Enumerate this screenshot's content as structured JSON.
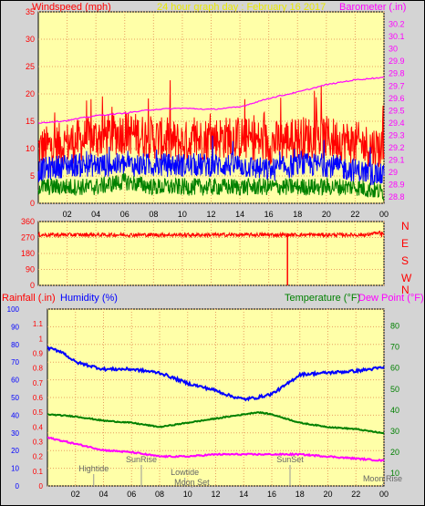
{
  "header": {
    "windspeed_label": "Windspeed (mph)",
    "title": "24 hour graph day : February 16 2017",
    "barometer_label": "Barometer (.in)"
  },
  "bottom_header": {
    "rainfall_label": "Rainfall (.in)",
    "humidity_label": "Humidity (%)",
    "temperature_label": "Temperature (°F)",
    "dewpoint_label": "Dew Point (°F)"
  },
  "colors": {
    "background": "#ffffa8",
    "grid": "#e8a060",
    "gust": "#ff0000",
    "average_wind": "#0000ff",
    "lull": "#008000",
    "barometer": "#ff00ff",
    "direction": "#ff0000",
    "humidity": "#0000ff",
    "temperature": "#008000",
    "dewpoint": "#ff00ff",
    "compass_text": "#ff0000"
  },
  "chart_data": [
    {
      "type": "line",
      "name": "wind-barometer",
      "x_ticks": [
        "02",
        "04",
        "06",
        "08",
        "10",
        "12",
        "14",
        "16",
        "18",
        "20",
        "22",
        "00"
      ],
      "wind_ylim": [
        0,
        35
      ],
      "wind_ticks": [
        "0",
        "5",
        "10",
        "15",
        "20",
        "25",
        "30",
        "35"
      ],
      "baro_ylim": [
        28.75,
        30.3
      ],
      "baro_ticks": [
        "28.8",
        "28.9",
        "29",
        "29.1",
        "29.2",
        "29.3",
        "29.4",
        "29.5",
        "29.6",
        "29.7",
        "29.8",
        "29.9",
        "30",
        "30.1",
        "30.2"
      ],
      "wind_gust_mean": [
        10,
        11,
        12,
        13,
        12,
        11,
        12,
        12,
        11,
        12,
        12,
        11,
        10
      ],
      "wind_avg_mean": [
        6,
        7,
        7,
        7,
        7,
        7,
        7,
        7,
        6,
        7,
        7,
        6,
        5
      ],
      "wind_lull_mean": [
        3,
        3,
        3,
        4,
        3,
        3,
        3,
        3,
        3,
        3,
        3,
        3,
        2
      ],
      "barometer": {
        "x": [
          0,
          2,
          4,
          6,
          8,
          10,
          12,
          14,
          16,
          18,
          20,
          22,
          24
        ],
        "y": [
          29.4,
          29.42,
          29.46,
          29.48,
          29.51,
          29.52,
          29.51,
          29.53,
          29.6,
          29.65,
          29.71,
          29.75,
          29.77
        ]
      }
    },
    {
      "type": "line",
      "name": "wind-direction",
      "x_ticks": [
        "02",
        "04",
        "06",
        "08",
        "10",
        "12",
        "14",
        "16",
        "18",
        "20",
        "22",
        "00"
      ],
      "ylim": [
        0,
        360
      ],
      "ticks": [
        "0",
        "90",
        "180",
        "270",
        "360"
      ],
      "compass": [
        "N",
        "W",
        "S",
        "E",
        "N"
      ],
      "direction_mean": 285,
      "spike_time": 17.3
    },
    {
      "type": "line",
      "name": "rain-humidity-temp",
      "x_ticks": [
        "02",
        "04",
        "06",
        "08",
        "10",
        "12",
        "14",
        "16",
        "18",
        "20",
        "22",
        "00"
      ],
      "humidity_ticks": [
        "0",
        "10",
        "20",
        "30",
        "40",
        "50",
        "60",
        "70",
        "80",
        "90",
        "100"
      ],
      "rain_ticks": [
        "0",
        "0.1",
        "0.2",
        "0.3",
        "0.4",
        "0.5",
        "0.6",
        "0.7",
        "0.8",
        "0.9",
        "1",
        "1.1"
      ],
      "temp_ticks": [
        "10",
        "20",
        "30",
        "40",
        "50",
        "60",
        "70",
        "80"
      ],
      "humidity": {
        "x": [
          0,
          1,
          2,
          3,
          4,
          6,
          8,
          10,
          12,
          13,
          14,
          15,
          16,
          17,
          18,
          20,
          22,
          24
        ],
        "y": [
          78,
          76,
          70,
          68,
          66,
          66,
          64,
          58,
          54,
          51,
          49,
          50,
          52,
          57,
          63,
          64,
          65,
          67
        ]
      },
      "temperature": {
        "x": [
          0,
          2,
          4,
          6,
          8,
          10,
          12,
          14,
          15,
          16,
          18,
          20,
          22,
          24
        ],
        "y": [
          38,
          37,
          35,
          34,
          32,
          34,
          36,
          38,
          39,
          38,
          34,
          32,
          31,
          29
        ]
      },
      "dewpoint": {
        "x": [
          0,
          2,
          4,
          6,
          8,
          10,
          12,
          14,
          16,
          18,
          20,
          22,
          24
        ],
        "y": [
          27,
          24,
          21,
          20,
          18,
          18,
          19,
          19,
          19,
          19,
          18,
          17,
          16
        ]
      },
      "annotations": [
        {
          "label": "Hightide",
          "time": 3.3
        },
        {
          "label": "SunRise",
          "time": 6.7
        },
        {
          "label": "Lowtide",
          "time": 9.8
        },
        {
          "label": "Moon Set",
          "time": 10.3
        },
        {
          "label": "SunSet",
          "time": 17.3
        },
        {
          "label": "Moon Rise",
          "time": 23.9
        }
      ]
    }
  ]
}
